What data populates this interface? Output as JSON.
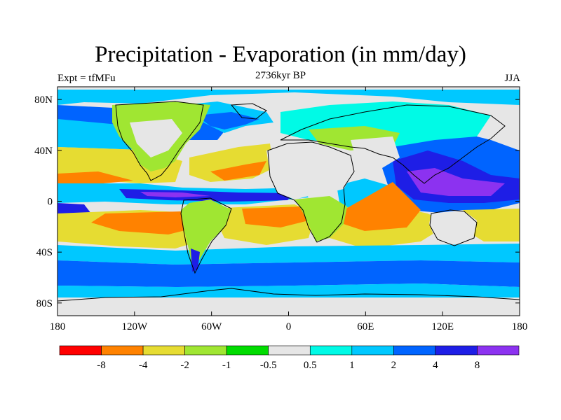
{
  "title": "Precipitation - Evaporation (in mm/day)",
  "subtitle_left": "Expt = tfMFu",
  "subtitle_center": "2736kyr BP",
  "subtitle_right": "JJA",
  "map": {
    "lon_range": [
      -180,
      180
    ],
    "lat_range": [
      -90,
      90
    ],
    "x_ticks": [
      {
        "value": -180,
        "label": "180"
      },
      {
        "value": -120,
        "label": "120W"
      },
      {
        "value": -60,
        "label": "60W"
      },
      {
        "value": 0,
        "label": "0"
      },
      {
        "value": 60,
        "label": "60E"
      },
      {
        "value": 120,
        "label": "120E"
      },
      {
        "value": 180,
        "label": "180"
      }
    ],
    "y_ticks": [
      {
        "value": 80,
        "label": "80N"
      },
      {
        "value": 40,
        "label": "40N"
      },
      {
        "value": 0,
        "label": "0"
      },
      {
        "value": -40,
        "label": "40S"
      },
      {
        "value": -80,
        "label": "80S"
      }
    ],
    "background_color": "#e6e6e6"
  },
  "colorbar": {
    "colors": [
      "#ff0000",
      "#ff8200",
      "#e6dc32",
      "#a0e632",
      "#00dc00",
      "#e6e6e6",
      "#00fae6",
      "#00c8ff",
      "#0064ff",
      "#1e1ee6",
      "#8c32f0"
    ],
    "labels": [
      "-8",
      "-4",
      "-2",
      "-1",
      "-0.5",
      "0.5",
      "1",
      "2",
      "4",
      "8"
    ]
  }
}
